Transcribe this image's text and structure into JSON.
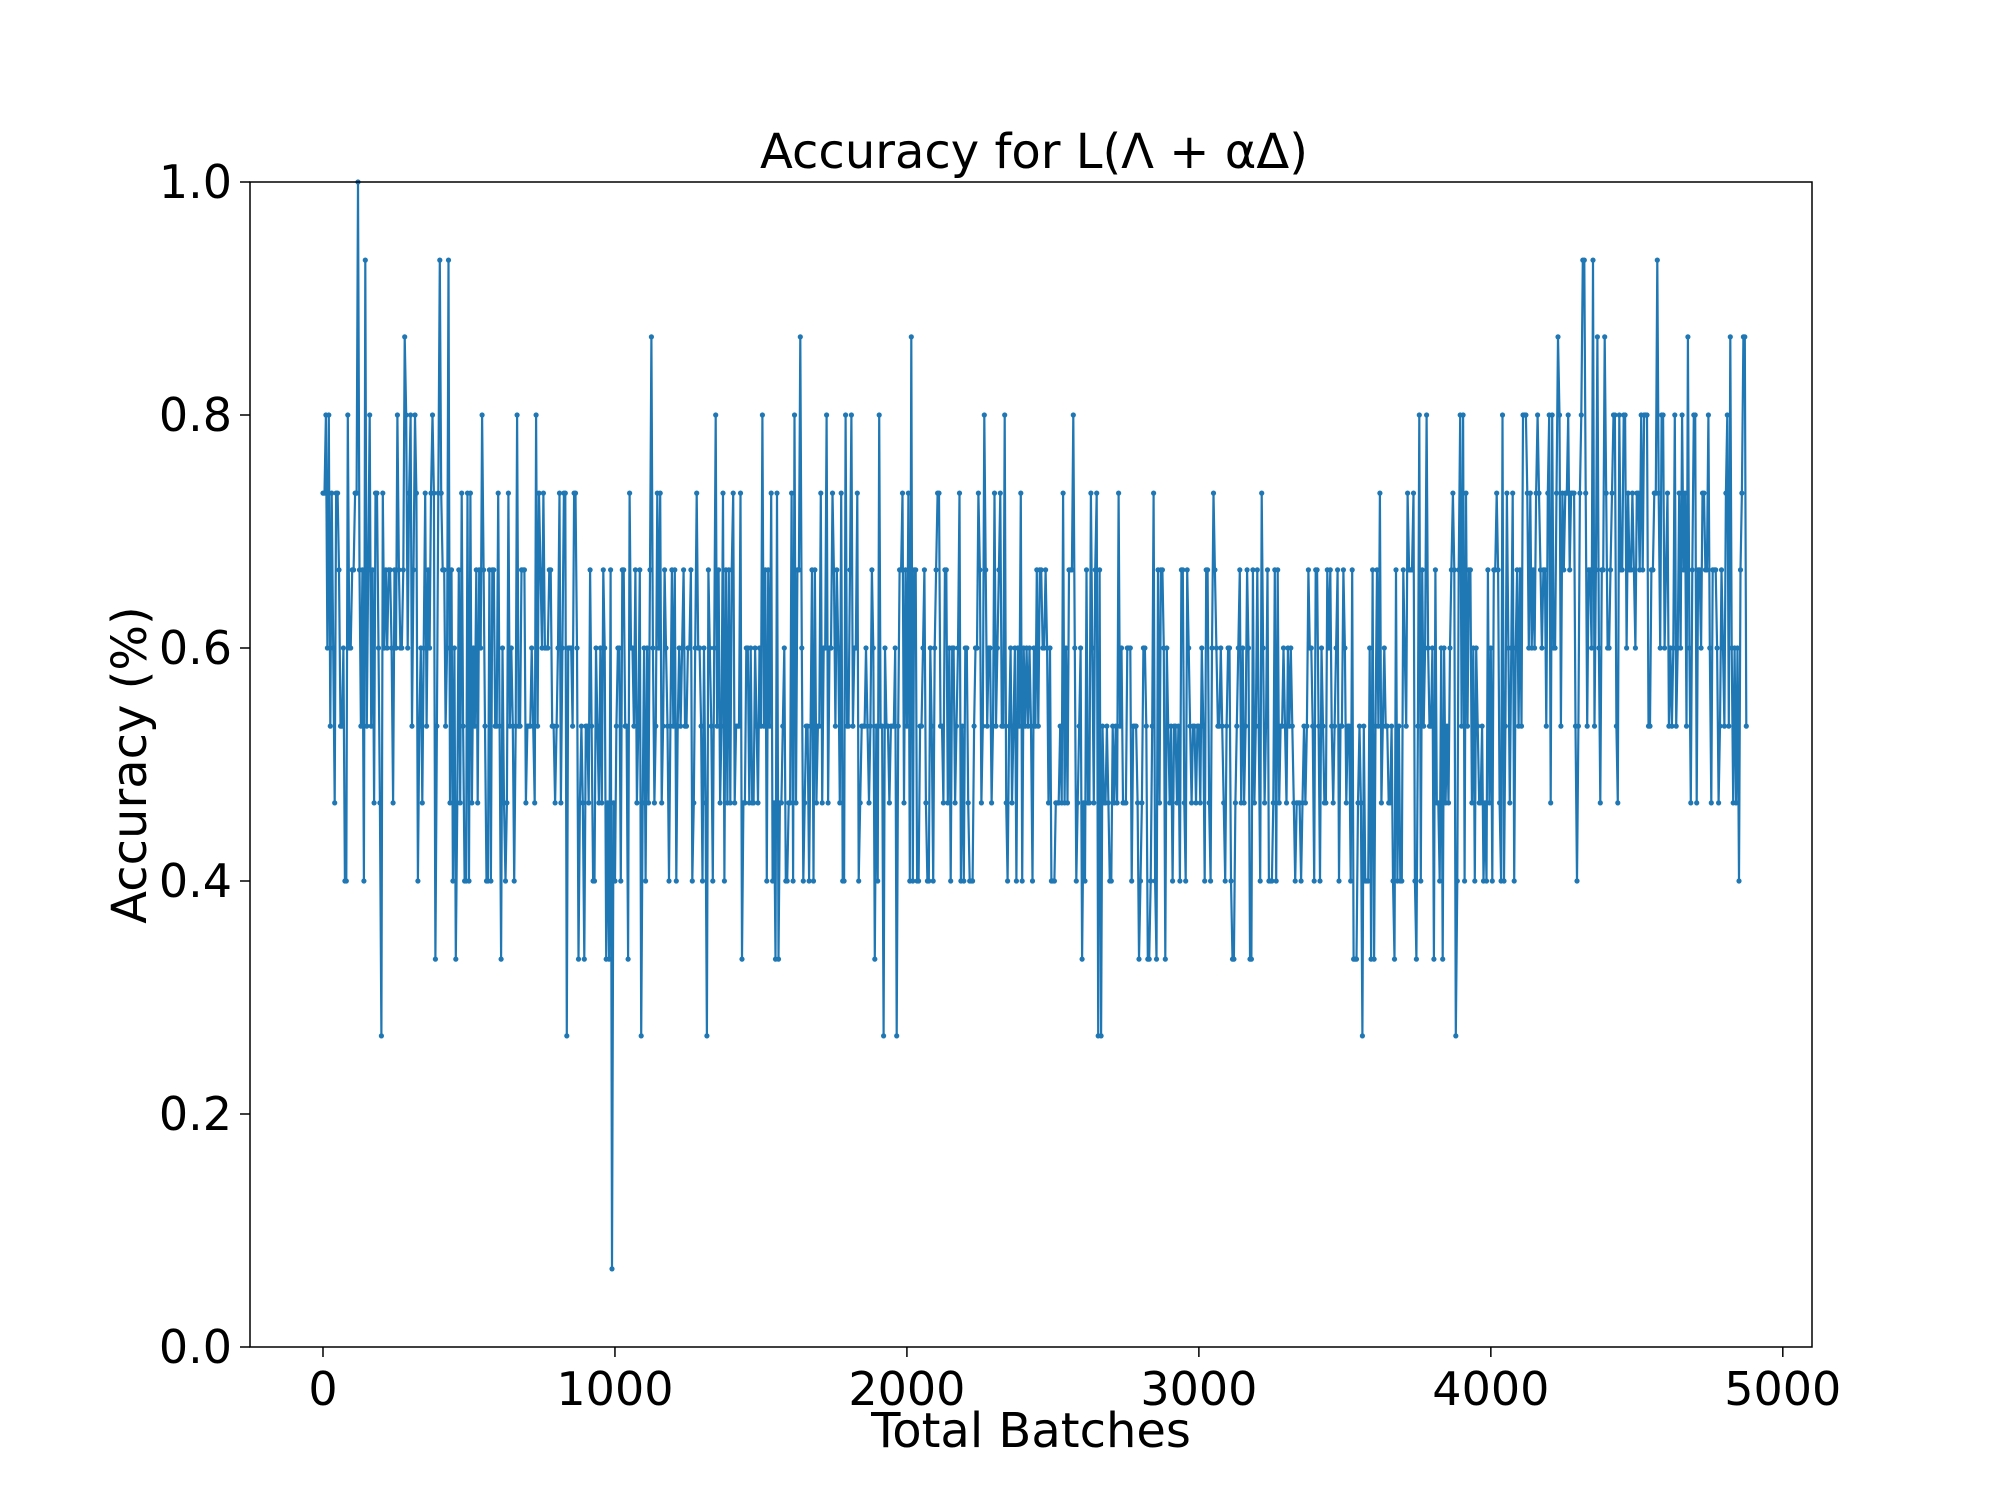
{
  "chart_data": {
    "type": "line",
    "title": "Accuracy for L(Λ + αΔ)",
    "xlabel": "Total Batches",
    "ylabel": "Accuracy (%)",
    "xlim": [
      -250,
      5100
    ],
    "ylim": [
      0.0,
      1.0
    ],
    "x_ticks": [
      "0",
      "1000",
      "2000",
      "3000",
      "4000",
      "5000"
    ],
    "y_ticks": [
      "0.0",
      "0.2",
      "0.4",
      "0.6",
      "0.8",
      "1.0"
    ],
    "grid": false,
    "legend": "none",
    "series": [
      {
        "color": "#1f77b4",
        "marker": "dot",
        "x_start": 0,
        "x_step": 5,
        "levels": [
          0.067,
          0.133,
          0.2,
          0.267,
          0.333,
          0.4,
          0.467,
          0.533,
          0.6,
          0.667,
          0.733,
          0.8,
          0.867,
          0.933,
          1.0
        ],
        "segments": [
          {
            "x_from": 0,
            "x_to": 500,
            "mean": 0.62,
            "spread": 0.2
          },
          {
            "x_from": 500,
            "x_to": 1500,
            "mean": 0.56,
            "spread": 0.16
          },
          {
            "x_from": 1500,
            "x_to": 2600,
            "mean": 0.56,
            "spread": 0.16
          },
          {
            "x_from": 2600,
            "x_to": 3700,
            "mean": 0.5,
            "spread": 0.15
          },
          {
            "x_from": 3700,
            "x_to": 4100,
            "mean": 0.57,
            "spread": 0.18
          },
          {
            "x_from": 4100,
            "x_to": 4880,
            "mean": 0.68,
            "spread": 0.16
          }
        ],
        "min": {
          "x": 990,
          "y": 0.067
        },
        "max": {
          "x": 120,
          "y": 1.0
        }
      }
    ]
  }
}
